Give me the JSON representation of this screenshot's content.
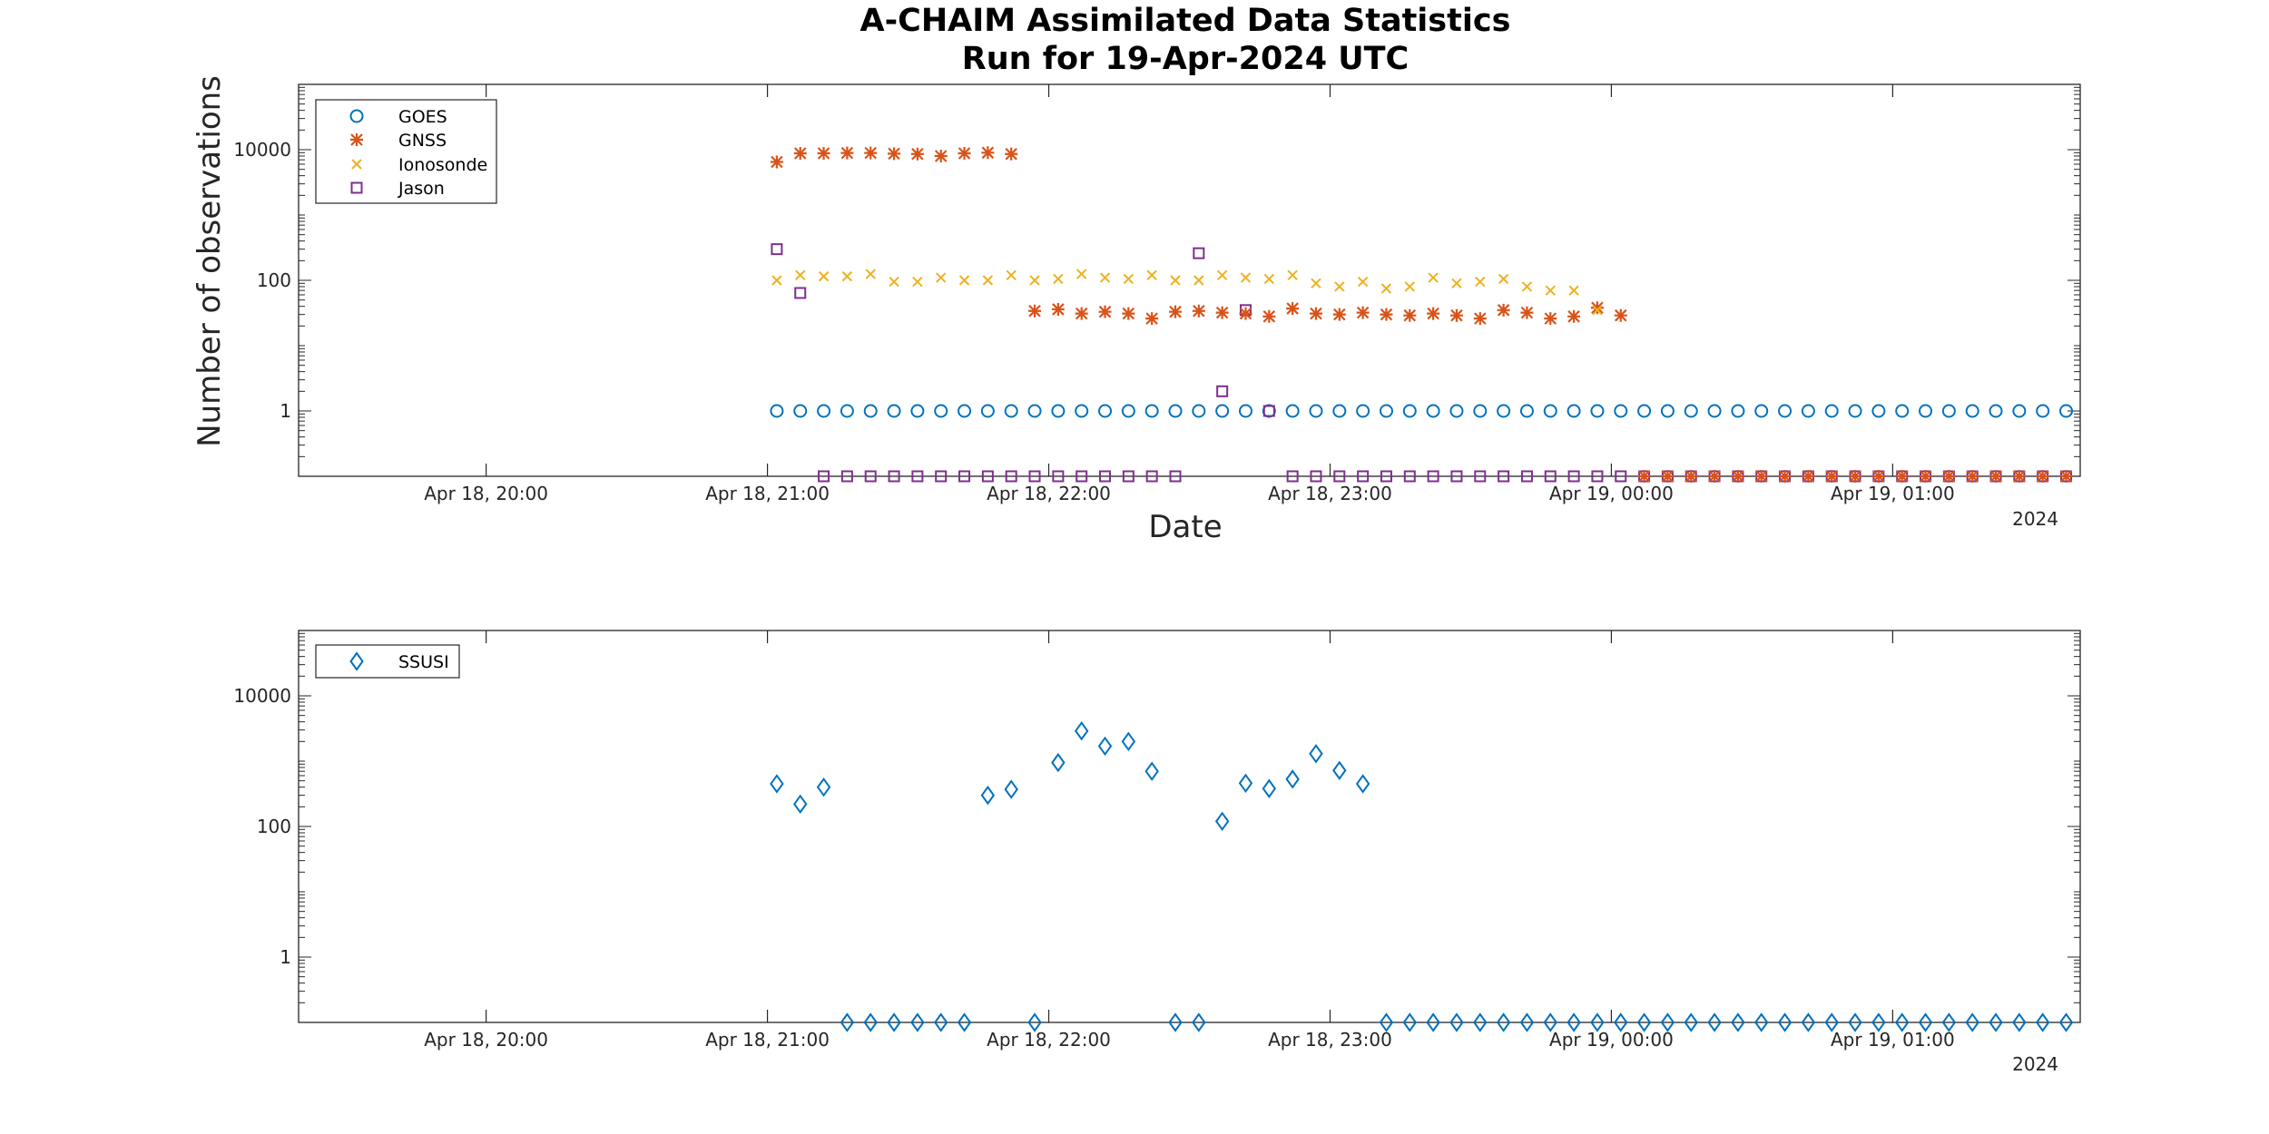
{
  "figure": {
    "title_line1": "A-CHAIM Assimilated Data Statistics",
    "title_line2": "Run for 19-Apr-2024 UTC"
  },
  "colors": {
    "GOES": "#0072BD",
    "GNSS": "#D95319",
    "Ionosonde": "#EDB120",
    "Jason": "#7E2F8E",
    "SSUSI": "#0072BD",
    "axis": "#262626"
  },
  "chart_data": [
    {
      "type": "scatter",
      "ylabel": "Number of observations",
      "xlabel": "Date",
      "x_axis_year_label": "2024",
      "y_scale": "log",
      "ylim": [
        0.1,
        100000
      ],
      "xlim": [
        "2024-04-18 19:20",
        "2024-04-19 01:40"
      ],
      "x_ticks": [
        {
          "t": "2024-04-18 20:00",
          "label": "Apr 18, 20:00"
        },
        {
          "t": "2024-04-18 21:00",
          "label": "Apr 18, 21:00"
        },
        {
          "t": "2024-04-18 22:00",
          "label": "Apr 18, 22:00"
        },
        {
          "t": "2024-04-18 23:00",
          "label": "Apr 18, 23:00"
        },
        {
          "t": "2024-04-19 00:00",
          "label": "Apr 19, 00:00"
        },
        {
          "t": "2024-04-19 01:00",
          "label": "Apr 19, 01:00"
        }
      ],
      "y_tick_labels": [
        "1",
        "100",
        "10000"
      ],
      "legend_position": "top-left",
      "grid": false,
      "series": [
        {
          "name": "GOES",
          "marker": "circle",
          "x_range": {
            "start": "2024-04-18 21:02",
            "end": "2024-04-19 01:40",
            "step_minutes": 5
          },
          "y": [
            1,
            1,
            1,
            1,
            1,
            1,
            1,
            1,
            1,
            1,
            1,
            1,
            1,
            1,
            1,
            1,
            1,
            1,
            1,
            1,
            1,
            1,
            1,
            1,
            1,
            1,
            1,
            1,
            1,
            1,
            1,
            1,
            1,
            1,
            1,
            1,
            1,
            1,
            1,
            1,
            1,
            1,
            1,
            1,
            1,
            1,
            1,
            1,
            1,
            1,
            1,
            1,
            1,
            1,
            1,
            1,
            1,
            1,
            1,
            1
          ]
        },
        {
          "name": "GNSS",
          "marker": "asterisk",
          "x_range": {
            "start": "2024-04-18 21:02",
            "end": "2024-04-19 01:40",
            "step_minutes": 5
          },
          "y": [
            6500,
            8800,
            8800,
            8900,
            8900,
            8700,
            8600,
            8000,
            8800,
            9000,
            8600,
            34,
            36,
            31,
            33,
            31,
            26,
            33,
            34,
            32,
            31,
            28,
            37,
            31,
            30,
            32,
            30,
            29,
            31,
            29,
            26,
            35,
            32,
            26,
            28,
            38,
            29,
            0.1,
            0.1,
            0.1,
            0.1,
            0.1,
            0.1,
            0.1,
            0.1,
            0.1,
            0.1,
            0.1,
            0.1,
            0.1,
            0.1,
            0.1,
            0.1,
            0.1,
            0.1,
            0.1,
            0.1,
            0.1,
            0.1,
            0.1
          ]
        },
        {
          "name": "Ionosonde",
          "marker": "x",
          "x_range": {
            "start": "2024-04-18 21:02",
            "end": "2024-04-18 23:57",
            "step_minutes": 5
          },
          "y": [
            100,
            120,
            115,
            115,
            125,
            95,
            95,
            110,
            100,
            100,
            120,
            100,
            105,
            125,
            110,
            105,
            120,
            100,
            100,
            120,
            110,
            105,
            120,
            90,
            80,
            95,
            75,
            80,
            110,
            90,
            95,
            105,
            80,
            70,
            70,
            35,
            7
          ]
        }
      ],
      "jason_points": {
        "name": "Jason",
        "marker": "square",
        "x": [
          "2024-04-18 21:02",
          "2024-04-18 21:07",
          "2024-04-18 22:32",
          "2024-04-18 22:37",
          "2024-04-18 22:42",
          "2024-04-18 22:47"
        ],
        "y": [
          300,
          64,
          260,
          2,
          35,
          1
        ]
      },
      "jason_floor": {
        "x_range": {
          "start": "2024-04-18 21:12",
          "end": "2024-04-19 01:40",
          "step_minutes": 5
        },
        "skip": [
          "2024-04-18 22:32",
          "2024-04-18 22:37",
          "2024-04-18 22:42",
          "2024-04-18 22:47"
        ],
        "y": 0.1
      }
    },
    {
      "type": "scatter",
      "ylabel": "",
      "xlabel": "",
      "x_axis_year_label": "2024",
      "y_scale": "log",
      "ylim": [
        0.1,
        100000
      ],
      "xlim": [
        "2024-04-18 19:20",
        "2024-04-19 01:40"
      ],
      "y_tick_labels": [
        "1",
        "100",
        "10000"
      ],
      "legend_position": "top-left",
      "grid": false,
      "series": [
        {
          "name": "SSUSI",
          "marker": "diamond",
          "x": [
            "2024-04-18 21:02",
            "2024-04-18 21:07",
            "2024-04-18 21:12",
            "2024-04-18 21:17",
            "2024-04-18 21:22",
            "2024-04-18 21:27",
            "2024-04-18 21:32",
            "2024-04-18 21:37",
            "2024-04-18 21:42",
            "2024-04-18 21:47",
            "2024-04-18 21:52",
            "2024-04-18 21:57",
            "2024-04-18 22:02",
            "2024-04-18 22:07",
            "2024-04-18 22:12",
            "2024-04-18 22:17",
            "2024-04-18 22:22",
            "2024-04-18 22:27",
            "2024-04-18 22:32",
            "2024-04-18 22:37",
            "2024-04-18 22:42",
            "2024-04-18 22:47",
            "2024-04-18 22:52",
            "2024-04-18 22:57",
            "2024-04-18 23:02",
            "2024-04-18 23:07"
          ],
          "y": [
            450,
            220,
            400,
            0.1,
            0.1,
            0.1,
            0.1,
            0.1,
            0.1,
            300,
            370,
            0.1,
            950,
            2900,
            1700,
            2000,
            700,
            0.1,
            0.1,
            120,
            460,
            380,
            530,
            1300,
            720,
            450
          ]
        },
        {
          "name": "SSUSI (tail)",
          "marker": "diamond",
          "x_range": {
            "start": "2024-04-18 23:12",
            "end": "2024-04-19 01:40",
            "step_minutes": 5
          },
          "extra_y": [
            200
          ],
          "y": 0.1
        }
      ]
    }
  ]
}
